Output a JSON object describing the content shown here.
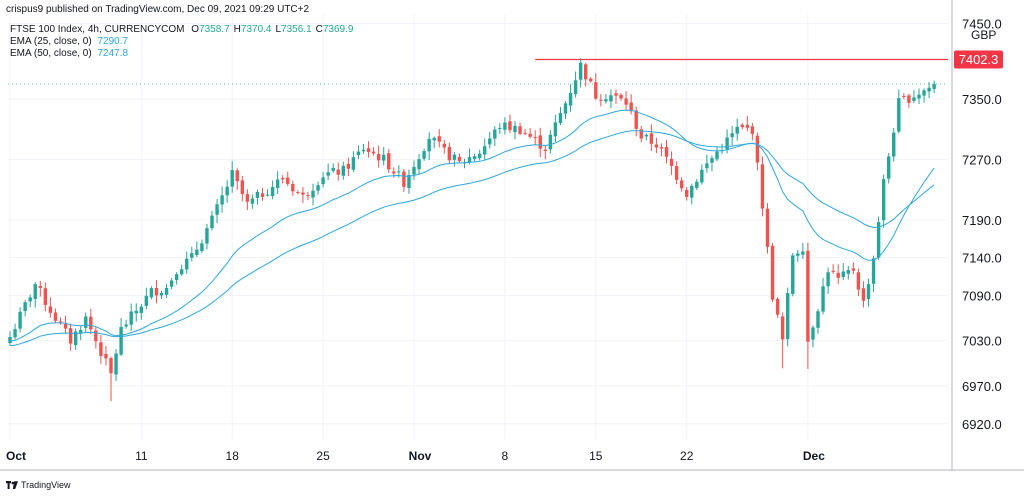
{
  "header": {
    "published": "crispus9 published on TradingView.com, Dec 09, 2021 09:29 UTC+2"
  },
  "legend": {
    "title": "FTSE 100 Index, 4h, CURRENCYCOM",
    "ohlc": [
      {
        "k": "O",
        "v": "7358.7"
      },
      {
        "k": "H",
        "v": "7370.4"
      },
      {
        "k": "L",
        "v": "7356.1"
      },
      {
        "k": "C",
        "v": "7369.9"
      }
    ],
    "ema25_label": "EMA (25, close, 0)",
    "ema25_value": "7290.7",
    "ema50_label": "EMA (50, close, 0)",
    "ema50_value": "7247.8"
  },
  "currency": "GBP",
  "footer": {
    "brand": "TradingView"
  },
  "colors": {
    "up": "#26a69a",
    "down": "#ef5350",
    "ema": "#2ca8e0",
    "level": "#f23645",
    "grid": "#f0f3fa",
    "axis": "#b2b5be"
  },
  "chart_data": {
    "type": "candlestick",
    "instrument": "FTSE 100 Index",
    "interval": "4h",
    "y_ticks": [
      "7450.0",
      "7402.3",
      "7350.0",
      "7270.0",
      "7190.0",
      "7140.0",
      "7090.0",
      "7030.0",
      "6970.0",
      "6920.0"
    ],
    "x_ticks": [
      {
        "label": "Oct",
        "bar": 0
      },
      {
        "label": "11",
        "bar": 26
      },
      {
        "label": "18",
        "bar": 44
      },
      {
        "label": "25",
        "bar": 62
      },
      {
        "label": "Nov",
        "bar": 80
      },
      {
        "label": "8",
        "bar": 98
      },
      {
        "label": "15",
        "bar": 116
      },
      {
        "label": "22",
        "bar": 134
      },
      {
        "label": "Dec",
        "bar": 158
      }
    ],
    "resistance": {
      "value": 7402.3,
      "label": "7402.3"
    },
    "last_price": 7369.9,
    "anchors": [
      [
        0,
        7035
      ],
      [
        5,
        7105
      ],
      [
        8,
        7070
      ],
      [
        12,
        7030
      ],
      [
        15,
        7060
      ],
      [
        20,
        6985
      ],
      [
        22,
        7045
      ],
      [
        25,
        7070
      ],
      [
        28,
        7095
      ],
      [
        31,
        7100
      ],
      [
        33,
        7125
      ],
      [
        36,
        7140
      ],
      [
        40,
        7190
      ],
      [
        44,
        7250
      ],
      [
        47,
        7210
      ],
      [
        50,
        7225
      ],
      [
        54,
        7245
      ],
      [
        58,
        7220
      ],
      [
        62,
        7250
      ],
      [
        66,
        7255
      ],
      [
        70,
        7285
      ],
      [
        74,
        7270
      ],
      [
        78,
        7240
      ],
      [
        83,
        7300
      ],
      [
        86,
        7280
      ],
      [
        89,
        7265
      ],
      [
        93,
        7280
      ],
      [
        97,
        7315
      ],
      [
        101,
        7310
      ],
      [
        106,
        7285
      ],
      [
        110,
        7345
      ],
      [
        113,
        7395
      ],
      [
        116,
        7355
      ],
      [
        119,
        7355
      ],
      [
        122,
        7345
      ],
      [
        125,
        7300
      ],
      [
        128,
        7290
      ],
      [
        131,
        7260
      ],
      [
        134,
        7225
      ],
      [
        137,
        7255
      ],
      [
        140,
        7280
      ],
      [
        144,
        7310
      ],
      [
        147,
        7310
      ],
      [
        149,
        7210
      ],
      [
        151,
        7090
      ],
      [
        153,
        7030
      ],
      [
        155,
        7145
      ],
      [
        157,
        7155
      ],
      [
        158,
        7030
      ],
      [
        160,
        7075
      ],
      [
        162,
        7125
      ],
      [
        164,
        7110
      ],
      [
        167,
        7125
      ],
      [
        169,
        7080
      ],
      [
        171,
        7140
      ],
      [
        173,
        7240
      ],
      [
        176,
        7345
      ],
      [
        179,
        7355
      ],
      [
        182,
        7365
      ],
      [
        183,
        7369.9
      ]
    ],
    "ema_periods": [
      25,
      50
    ]
  }
}
